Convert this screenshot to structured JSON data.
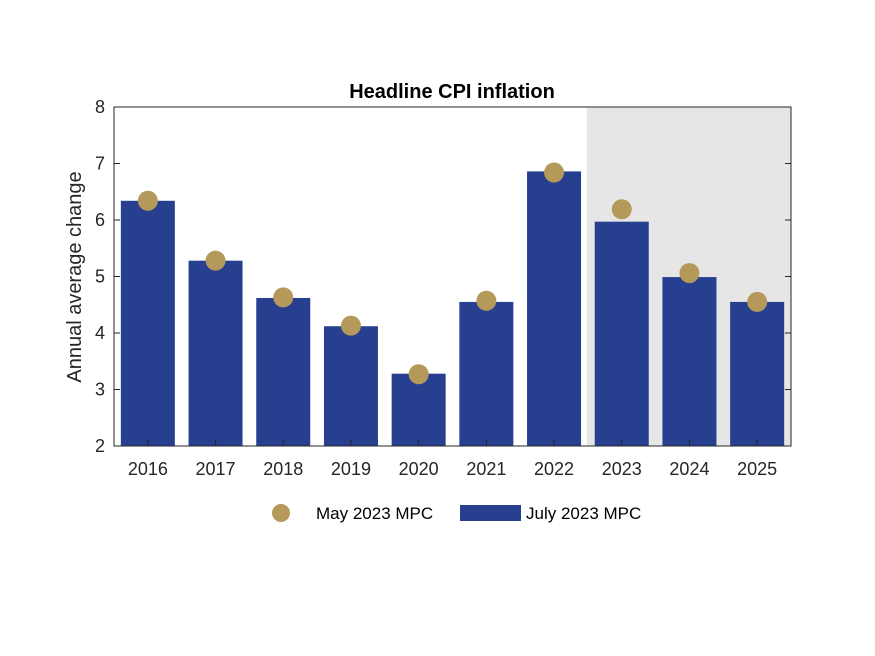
{
  "chart_data": {
    "type": "bar",
    "title": "Headline CPI inflation",
    "xlabel": "",
    "ylabel": "Annual average change",
    "categories": [
      "2016",
      "2017",
      "2018",
      "2019",
      "2020",
      "2021",
      "2022",
      "2023",
      "2024",
      "2025"
    ],
    "ylim": [
      2,
      8
    ],
    "yticks": [
      2,
      3,
      4,
      5,
      6,
      7,
      8
    ],
    "grid": false,
    "legend_position": "bottom",
    "shaded_region": {
      "from": "2023",
      "to": "2025",
      "color": "#e6e6e6"
    },
    "series": [
      {
        "name": "July 2023 MPC",
        "type": "bar",
        "color": "#26408f",
        "values": [
          6.34,
          5.28,
          4.62,
          4.12,
          3.28,
          4.55,
          6.86,
          5.97,
          4.99,
          4.55
        ]
      },
      {
        "name": "May 2023 MPC",
        "type": "scatter",
        "color": "#b4995a",
        "values": [
          6.34,
          5.28,
          4.63,
          4.13,
          3.27,
          4.57,
          6.84,
          6.19,
          5.06,
          4.55
        ]
      }
    ]
  }
}
